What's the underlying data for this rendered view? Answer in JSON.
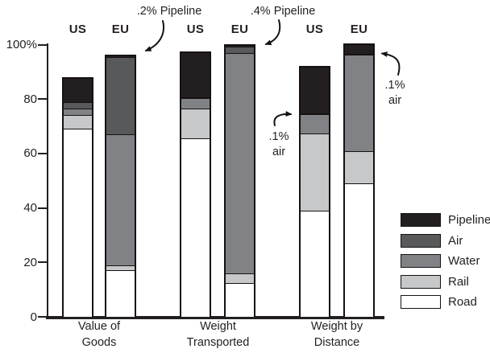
{
  "colors": {
    "Pipeline": "#231f20",
    "Air": "#58595b",
    "Water": "#808285",
    "Rail": "#c7c8ca",
    "Road": "#ffffff",
    "axis": "#231f20",
    "text": "#231f20"
  },
  "chart_data": {
    "type": "bar",
    "variant": "stacked-percentage",
    "title": "",
    "xlabel": "",
    "ylabel": "",
    "ylim": [
      0,
      100
    ],
    "yticks": [
      "0",
      "20",
      "40",
      "60",
      "80",
      "100%"
    ],
    "grid": false,
    "legend_position": "right",
    "categories": [
      "Value of Goods",
      "Weight Transported",
      "Weight by Distance"
    ],
    "bar_labels": [
      "US",
      "EU"
    ],
    "modes_bottom_to_top": [
      "Road",
      "Rail",
      "Water",
      "Air",
      "Pipeline"
    ],
    "values_pct": {
      "Value of Goods": {
        "US": {
          "Road": 69,
          "Rail": 5,
          "Water": 2.5,
          "Air": 2.5,
          "Pipeline": 8.5
        },
        "EU": {
          "Road": 17,
          "Rail": 2,
          "Water": 48,
          "Air": 28.5,
          "Pipeline": 0.2
        }
      },
      "Weight Transported": {
        "US": {
          "Road": 65.5,
          "Rail": 11,
          "Water": 4,
          "Air": 0.3,
          "Pipeline": 16
        },
        "EU": {
          "Road": 12.5,
          "Rail": 3.3,
          "Water": 81,
          "Air": 2.5,
          "Pipeline": 0.4
        }
      },
      "Weight by Distance": {
        "US": {
          "Road": 39,
          "Rail": 28.5,
          "Water": 7,
          "Air": 0.1,
          "Pipeline": 17
        },
        "EU": {
          "Road": 49,
          "Rail": 12,
          "Water": 35.5,
          "Air": 0.1,
          "Pipeline": 3.4
        }
      }
    },
    "annotations": [
      {
        "text": ".2% Pipeline",
        "lines": [
          ".2% Pipeline"
        ],
        "target": "EU Value of Goods Pipeline"
      },
      {
        "text": ".4% Pipeline",
        "lines": [
          ".4% Pipeline"
        ],
        "target": "EU Weight Transported Pipeline"
      },
      {
        "text": ".1% air",
        "lines": [
          ".1%",
          "air"
        ],
        "target": "US Weight by Distance Air"
      },
      {
        "text": ".1% air",
        "lines": [
          ".1%",
          "air"
        ],
        "target": "EU Weight by Distance Air"
      }
    ]
  },
  "legend": {
    "items": [
      {
        "label": "Pipeline",
        "color": "#231f20"
      },
      {
        "label": "Air",
        "color": "#58595b"
      },
      {
        "label": "Water",
        "color": "#808285"
      },
      {
        "label": "Rail",
        "color": "#c7c8ca"
      },
      {
        "label": "Road",
        "color": "#ffffff"
      }
    ]
  }
}
